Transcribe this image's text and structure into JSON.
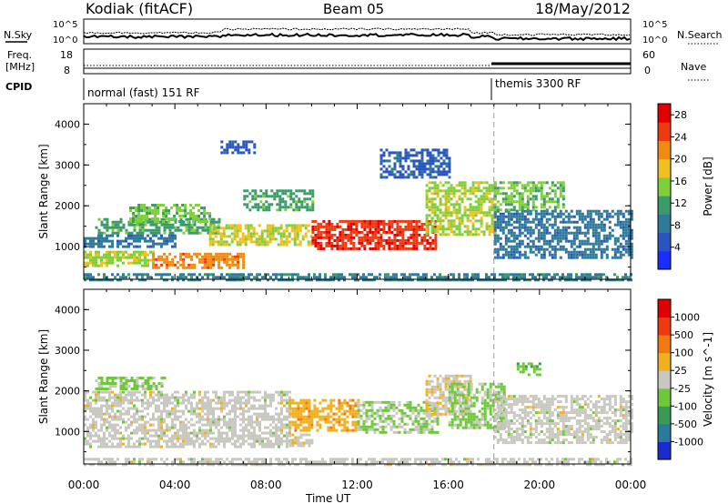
{
  "header": {
    "station": "Kodiak (fitACF)",
    "beam": "Beam 05",
    "date": "18/May/2012"
  },
  "status_strip": {
    "nsky_label": "N.Sky",
    "nsearch_label": "N.Search",
    "noise_ticks_left": [
      "10^5",
      "10^0"
    ],
    "noise_ticks_right": [
      "10^5",
      "10^0"
    ],
    "freq_label_line1": "Freq.",
    "freq_label_line2": "[MHz]",
    "freq_ticks": [
      "18",
      "8"
    ],
    "nave_label": "Nave",
    "nave_ticks": [
      "60",
      "0"
    ],
    "cpid_label": "CPID",
    "modes": [
      {
        "label": "normal (fast) 151 RF",
        "start_hour": 0
      },
      {
        "label": "themis 3300 RF",
        "start_hour": 18
      }
    ]
  },
  "chart_data": [
    {
      "type": "heatmap",
      "panel": "power",
      "title": "",
      "xlabel": "Time UT",
      "ylabel": "Slant Range [km]",
      "xlim": [
        0,
        24
      ],
      "ylim": [
        200,
        4500
      ],
      "x_ticks": [
        "00:00",
        "04:00",
        "08:00",
        "12:00",
        "16:00",
        "20:00",
        "00:00"
      ],
      "y_ticks": [
        "1000",
        "2000",
        "3000",
        "4000"
      ],
      "colorbar": {
        "label": "Power [dB]",
        "ticks": [
          "4",
          "8",
          "12",
          "16",
          "20",
          "24",
          "28"
        ],
        "range": [
          0,
          30
        ],
        "colors": [
          "#1a2cff",
          "#2a55c0",
          "#2f7a9a",
          "#3a9a6a",
          "#7fcf3a",
          "#f0c020",
          "#f08a10",
          "#ee3a10",
          "#e00000"
        ]
      },
      "regions": [
        {
          "t0": 0.0,
          "t1": 3.0,
          "r0": 550,
          "r1": 900,
          "v": 16
        },
        {
          "t0": 0.5,
          "t1": 6.0,
          "r0": 1300,
          "r1": 1700,
          "v": 12
        },
        {
          "t0": 3.0,
          "t1": 7.0,
          "r0": 450,
          "r1": 850,
          "v": 22
        },
        {
          "t0": 0.0,
          "t1": 4.0,
          "r0": 1000,
          "r1": 1300,
          "v": 8
        },
        {
          "t0": 2.0,
          "t1": 5.5,
          "r0": 1600,
          "r1": 2050,
          "v": 14
        },
        {
          "t0": 5.5,
          "t1": 10.0,
          "r0": 1050,
          "r1": 1550,
          "v": 17
        },
        {
          "t0": 10.0,
          "t1": 15.5,
          "r0": 950,
          "r1": 1650,
          "v": 26
        },
        {
          "t0": 7.0,
          "t1": 10.0,
          "r0": 1900,
          "r1": 2400,
          "v": 12
        },
        {
          "t0": 15.0,
          "t1": 18.0,
          "r0": 1300,
          "r1": 2600,
          "v": 16
        },
        {
          "t0": 13.0,
          "t1": 16.0,
          "r0": 2700,
          "r1": 3400,
          "v": 6
        },
        {
          "t0": 18.0,
          "t1": 24.0,
          "r0": 700,
          "r1": 1900,
          "v": 8
        },
        {
          "t0": 18.0,
          "t1": 21.0,
          "r0": 1900,
          "r1": 2600,
          "v": 14
        },
        {
          "t0": 0.0,
          "t1": 24.0,
          "r0": 200,
          "r1": 350,
          "v": 9
        },
        {
          "t0": 6.0,
          "t1": 7.5,
          "r0": 3300,
          "r1": 3600,
          "v": 5
        }
      ]
    },
    {
      "type": "heatmap",
      "panel": "velocity",
      "title": "",
      "xlabel": "Time UT",
      "ylabel": "Slant Range [km]",
      "xlim": [
        0,
        24
      ],
      "ylim": [
        200,
        4500
      ],
      "x_ticks": [
        "00:00",
        "04:00",
        "08:00",
        "12:00",
        "16:00",
        "20:00",
        "00:00"
      ],
      "y_ticks": [
        "1000",
        "2000",
        "3000",
        "4000"
      ],
      "colorbar": {
        "label": "Velocity [m s^-1]",
        "ticks": [
          "1000",
          "500",
          "100",
          "25",
          "-25",
          "-100",
          "-500",
          "-1000"
        ],
        "range": [
          -1200,
          1200
        ],
        "colors": [
          "#1a2ccf",
          "#2a7a9a",
          "#3a9a55",
          "#6fc83a",
          "#c8c8c0",
          "#f0b020",
          "#f07a10",
          "#ee3a10",
          "#e00000"
        ]
      },
      "regions": [
        {
          "t0": 0.0,
          "t1": 9.0,
          "r0": 600,
          "r1": 2000,
          "v": 0
        },
        {
          "t0": 9.0,
          "t1": 12.0,
          "r0": 1000,
          "r1": 1800,
          "v": 300
        },
        {
          "t0": 9.0,
          "t1": 10.0,
          "r0": 650,
          "r1": 950,
          "v": 80
        },
        {
          "t0": 12.0,
          "t1": 15.5,
          "r0": 950,
          "r1": 1750,
          "v": -150
        },
        {
          "t0": 15.0,
          "t1": 17.0,
          "r0": 1400,
          "r1": 2400,
          "v": 80
        },
        {
          "t0": 16.0,
          "t1": 18.5,
          "r0": 1100,
          "r1": 2200,
          "v": -200
        },
        {
          "t0": 18.0,
          "t1": 24.0,
          "r0": 700,
          "r1": 1900,
          "v": 0
        },
        {
          "t0": 19.0,
          "t1": 20.0,
          "r0": 2400,
          "r1": 2700,
          "v": -300
        },
        {
          "t0": 0.0,
          "t1": 24.0,
          "r0": 200,
          "r1": 350,
          "v": 0
        },
        {
          "t0": 0.5,
          "t1": 3.5,
          "r0": 2050,
          "r1": 2350,
          "v": -200
        }
      ]
    }
  ]
}
